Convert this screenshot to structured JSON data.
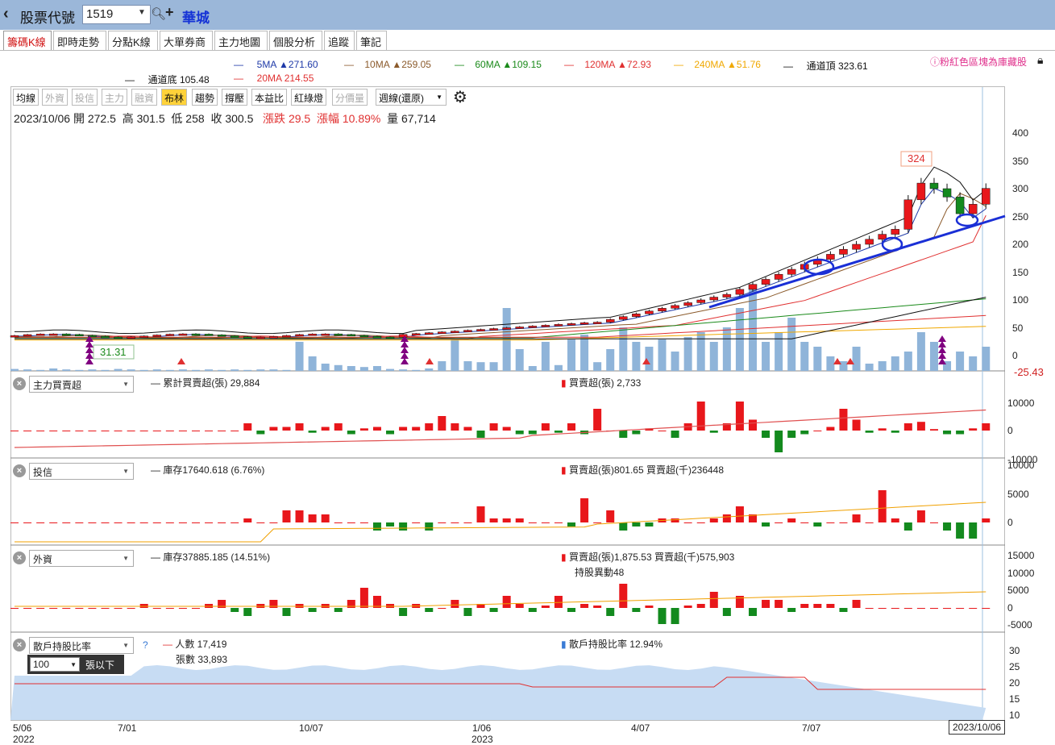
{
  "header": {
    "back_label": "‹",
    "stock_code_label": "股票代號",
    "stock_code": "1519",
    "stock_name": "華城"
  },
  "tabs": [
    "籌碼K線",
    "即時走勢",
    "分點K線",
    "大單券商",
    "主力地圖",
    "個股分析",
    "追蹤",
    "筆記"
  ],
  "ma_legend": {
    "ma5": "5MA ▲271.60",
    "ma10": "10MA ▲259.05",
    "ma60": "60MA ▲109.15",
    "ma120": "120MA ▲72.93",
    "ma240": "240MA ▲51.76",
    "chan_top": "通道頂 323.61",
    "chan_bottom": "通道底 105.48",
    "ma20": "20MA 214.55",
    "note": "粉紅色區塊為庫藏股"
  },
  "toolbar": {
    "buttons": [
      "均線",
      "外資",
      "投信",
      "主力",
      "融資",
      "布林",
      "趨勢",
      "撐壓",
      "本益比",
      "紅綠燈",
      "分價量"
    ],
    "period": "週線(還原)"
  },
  "ohlc": {
    "date": "2023/10/06",
    "open_label": "開",
    "open": "272.5",
    "high_label": "高",
    "high": "301.5",
    "low_label": "低",
    "low": "258",
    "close_label": "收",
    "close": "300.5",
    "change_label": "漲跌",
    "change": "29.5",
    "pct_label": "漲幅",
    "pct": "10.89%",
    "vol_label": "量",
    "vol": "67,714"
  },
  "price_axis": [
    "400",
    "350",
    "300",
    "250",
    "200",
    "150",
    "100",
    "50",
    "0",
    "-25.43"
  ],
  "price_labels": {
    "high_mark": "324",
    "low_mark": "31.31"
  },
  "panels": {
    "main_force": {
      "select": "主力買賣超",
      "cum": "累計買賣超(張) 29,884",
      "net": "買賣超(張) 2,733",
      "axis": [
        "10000",
        "0",
        "-10000"
      ]
    },
    "trust": {
      "select": "投信",
      "inv": "庫存17640.618 (6.76%)",
      "net": "買賣超(張)801.65 買賣超(千)236448",
      "axis": [
        "10000",
        "5000",
        "0"
      ]
    },
    "foreign": {
      "select": "外資",
      "inv": "庫存37885.185 (14.51%)",
      "net": "買賣超(張)1,875.53 買賣超(千)575,903",
      "change": "持股異動48",
      "axis": [
        "15000",
        "10000",
        "5000",
        "0",
        "-5000"
      ]
    },
    "retail": {
      "select": "散戶持股比率",
      "help": "?",
      "people": "人數 17,419",
      "shares": "張數 33,893",
      "ratio": "散戶持股比率 12.94%",
      "threshold": "100",
      "unit": "張以下",
      "axis": [
        "30",
        "25",
        "20",
        "15",
        "10"
      ]
    }
  },
  "x_axis": {
    "labels": [
      "5/06",
      "7/01",
      "10/07",
      "1/06",
      "4/07",
      "7/07"
    ],
    "years": [
      "2022",
      "2023"
    ],
    "current": "2023/10/06"
  },
  "colors": {
    "up": "#e8171b",
    "down": "#138a1e",
    "volume": "#8fb4d9",
    "ma5": "#1f3aa8",
    "ma10": "#8b5a2b",
    "ma60": "#1a8a1a",
    "ma120": "#e03030",
    "ma240": "#f0a800",
    "trend": "#1a2fd6"
  }
}
